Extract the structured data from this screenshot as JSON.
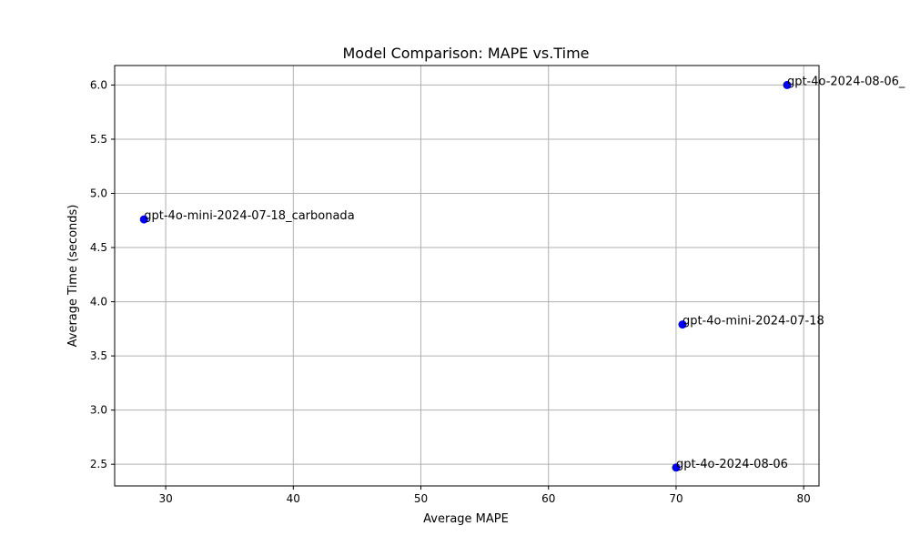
{
  "chart_data": {
    "type": "scatter",
    "title": "Model Comparison: MAPE vs.Time",
    "xlabel": "Average MAPE",
    "ylabel": "Average Time (seconds)",
    "xlim": [
      26,
      81.2
    ],
    "ylim": [
      2.3,
      6.18
    ],
    "xticks": [
      30,
      40,
      50,
      60,
      70,
      80
    ],
    "yticks": [
      2.5,
      3.0,
      3.5,
      4.0,
      4.5,
      5.0,
      5.5,
      6.0
    ],
    "xtick_labels": [
      "30",
      "40",
      "50",
      "60",
      "70",
      "80"
    ],
    "ytick_labels": [
      "2.5",
      "3.0",
      "3.5",
      "4.0",
      "4.5",
      "5.0",
      "5.5",
      "6.0"
    ],
    "grid": true,
    "point_color": "#0000ff",
    "points": [
      {
        "x": 28.3,
        "y": 4.76,
        "label": "gpt-4o-mini-2024-07-18_carbonada"
      },
      {
        "x": 70.5,
        "y": 3.79,
        "label": "gpt-4o-mini-2024-07-18"
      },
      {
        "x": 70.0,
        "y": 2.47,
        "label": "gpt-4o-2024-08-06"
      },
      {
        "x": 78.7,
        "y": 6.0,
        "label": "gpt-4o-2024-08-06_"
      }
    ]
  }
}
